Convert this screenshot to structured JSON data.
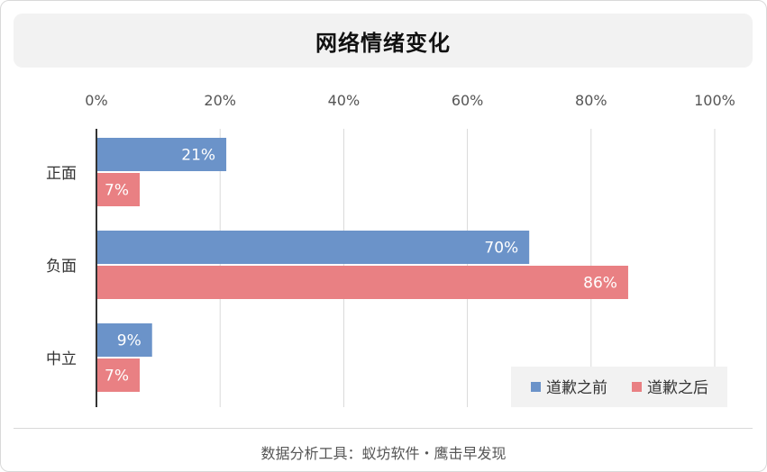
{
  "chart_data": {
    "type": "bar",
    "orientation": "horizontal",
    "title": "网络情绪变化",
    "categories": [
      "正面",
      "负面",
      "中立"
    ],
    "series": [
      {
        "name": "道歉之前",
        "values": [
          21,
          70,
          9
        ],
        "color": "#6b93c9"
      },
      {
        "name": "道歉之后",
        "values": [
          7,
          86,
          7
        ],
        "color": "#e98083"
      }
    ],
    "value_labels": [
      [
        "21%",
        "70%",
        "9%"
      ],
      [
        "7%",
        "86%",
        "7%"
      ]
    ],
    "xlim": [
      0,
      100
    ],
    "x_ticks": [
      "0%",
      "20%",
      "40%",
      "60%",
      "80%",
      "100%"
    ],
    "x_axis_position": "top",
    "grid": true,
    "legend_position": "bottom-right"
  },
  "footer": {
    "source_text": "数据分析工具：蚁坊软件・鹰击早发现"
  }
}
